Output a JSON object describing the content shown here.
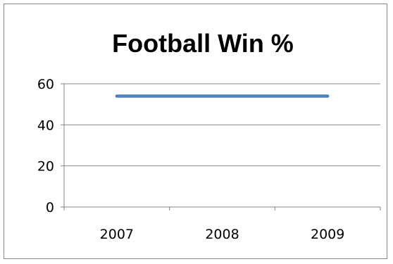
{
  "chart_data": {
    "type": "line",
    "title": "Football Win %",
    "xlabel": "",
    "ylabel": "",
    "categories": [
      "2007",
      "2008",
      "2009"
    ],
    "series": [
      {
        "values": [
          54,
          54,
          54
        ],
        "color": "#4F81BD"
      }
    ],
    "ylim": [
      0,
      60
    ],
    "yticks": [
      0,
      20,
      40,
      60
    ],
    "grid": true,
    "legend": "none"
  }
}
